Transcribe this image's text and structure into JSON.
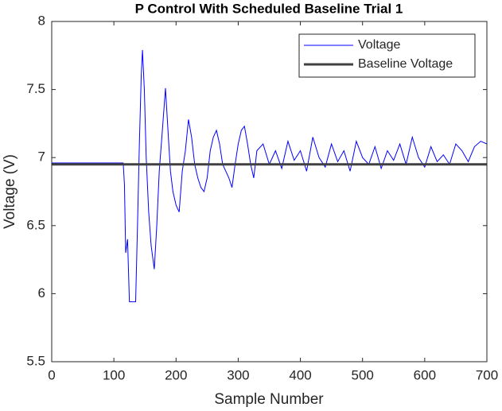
{
  "chart_data": {
    "type": "line",
    "title": "P Control With Scheduled Baseline Trial 1",
    "xlabel": "Sample Number",
    "ylabel": "Voltage (V)",
    "xlim": [
      0,
      700
    ],
    "ylim": [
      5.5,
      8
    ],
    "xticks": [
      0,
      100,
      200,
      300,
      400,
      500,
      600,
      700
    ],
    "yticks": [
      5.5,
      6,
      6.5,
      7,
      7.5,
      8
    ],
    "legend": "northeast",
    "series": [
      {
        "name": "Voltage",
        "color": "#0000ff",
        "width": 1,
        "x": [
          0,
          115,
          117,
          119,
          122,
          125,
          135,
          138,
          141,
          144,
          146,
          149,
          152,
          156,
          160,
          165,
          169,
          173,
          178,
          183,
          187,
          191,
          195,
          200,
          205,
          210,
          215,
          220,
          225,
          230,
          235,
          240,
          245,
          250,
          255,
          260,
          265,
          270,
          275,
          280,
          285,
          290,
          295,
          300,
          305,
          310,
          315,
          320,
          325,
          330,
          340,
          350,
          360,
          370,
          380,
          390,
          400,
          410,
          420,
          430,
          440,
          450,
          460,
          470,
          480,
          490,
          500,
          510,
          520,
          530,
          540,
          550,
          560,
          570,
          580,
          590,
          600,
          610,
          620,
          630,
          640,
          650,
          660,
          670,
          680,
          690,
          700
        ],
        "values": [
          6.96,
          6.96,
          6.8,
          6.3,
          6.4,
          5.94,
          5.94,
          6.5,
          7.1,
          7.6,
          7.79,
          7.5,
          7.0,
          6.6,
          6.35,
          6.18,
          6.5,
          6.9,
          7.2,
          7.51,
          7.2,
          6.9,
          6.75,
          6.65,
          6.6,
          6.9,
          7.05,
          7.28,
          7.15,
          6.95,
          6.85,
          6.78,
          6.75,
          6.85,
          7.05,
          7.15,
          7.2,
          7.1,
          6.95,
          6.9,
          6.85,
          6.78,
          6.95,
          7.1,
          7.2,
          7.23,
          7.1,
          6.95,
          6.85,
          7.05,
          7.1,
          6.95,
          7.05,
          6.92,
          7.12,
          6.98,
          7.05,
          6.9,
          7.15,
          7.0,
          6.93,
          7.1,
          6.97,
          7.05,
          6.9,
          7.12,
          7.0,
          6.95,
          7.08,
          6.92,
          7.05,
          6.98,
          7.1,
          6.95,
          7.15,
          7.0,
          6.93,
          7.08,
          6.97,
          7.02,
          6.95,
          7.1,
          7.05,
          6.97,
          7.08,
          7.12,
          7.1
        ]
      },
      {
        "name": "Baseline Voltage",
        "color": "#404040",
        "width": 3,
        "x": [
          0,
          700
        ],
        "values": [
          6.95,
          6.95
        ]
      }
    ]
  }
}
